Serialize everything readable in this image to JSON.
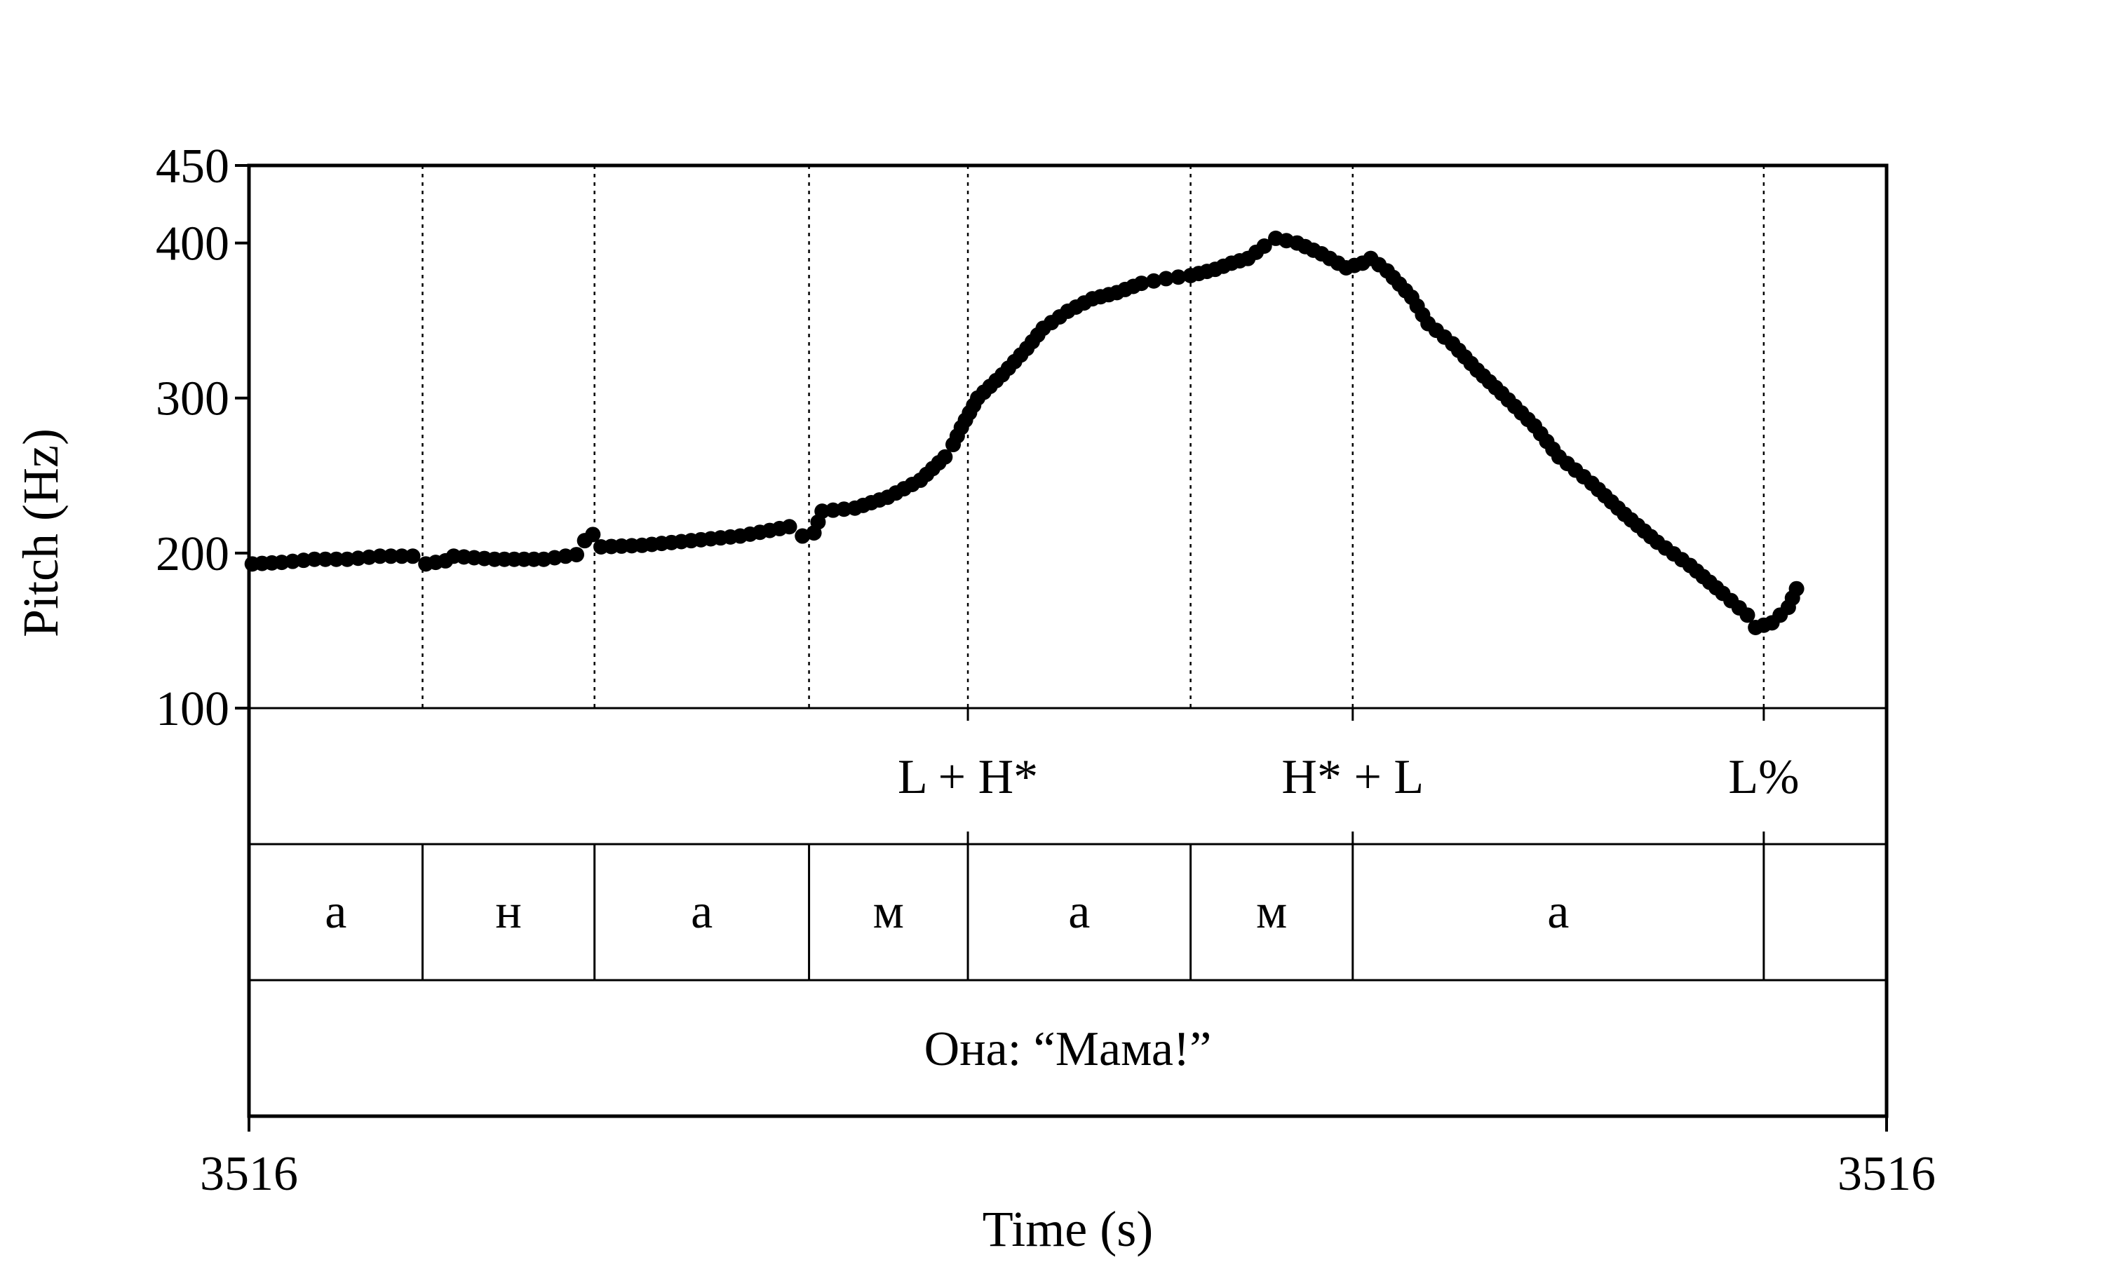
{
  "chart_data": {
    "type": "scatter",
    "title": "",
    "xlabel": "Time (s)",
    "ylabel": "Pitch (Hz)",
    "x_tick_labels": [
      "3516",
      "3516"
    ],
    "x_range_normalized": [
      0,
      1
    ],
    "ylim": [
      100,
      450
    ],
    "yticks": [
      100,
      200,
      300,
      400,
      450
    ],
    "ytick_labels": [
      "100",
      "200",
      "300",
      "400",
      "450"
    ],
    "grid": false,
    "legend": "none",
    "colors": {
      "points": "#000000",
      "lines": "#000000",
      "background": "#ffffff"
    },
    "boundaries": [
      0.106,
      0.211,
      0.342,
      0.439,
      0.575,
      0.674,
      0.925
    ],
    "tone_tier": [
      {
        "label": "L + H*",
        "t": 0.439
      },
      {
        "label": "H* + L",
        "t": 0.674
      },
      {
        "label": "L%",
        "t": 0.925
      }
    ],
    "segment_tier": [
      {
        "label": "а",
        "start": 0.0,
        "end": 0.106
      },
      {
        "label": "н",
        "start": 0.106,
        "end": 0.211
      },
      {
        "label": "а",
        "start": 0.211,
        "end": 0.342
      },
      {
        "label": "м",
        "start": 0.342,
        "end": 0.439
      },
      {
        "label": "а",
        "start": 0.439,
        "end": 0.575
      },
      {
        "label": "м",
        "start": 0.575,
        "end": 0.674
      },
      {
        "label": "а",
        "start": 0.674,
        "end": 0.925
      },
      {
        "label": "",
        "start": 0.925,
        "end": 1.0
      }
    ],
    "sentence_tier": "Она: “Мама!”",
    "pitch_contour": [
      [
        0.002,
        193
      ],
      [
        0.02,
        194
      ],
      [
        0.04,
        196
      ],
      [
        0.06,
        196
      ],
      [
        0.08,
        198
      ],
      [
        0.1,
        198
      ],
      [
        0.108,
        193
      ],
      [
        0.12,
        195
      ],
      [
        0.125,
        198
      ],
      [
        0.15,
        196
      ],
      [
        0.18,
        196
      ],
      [
        0.2,
        199
      ],
      [
        0.205,
        208
      ],
      [
        0.21,
        212
      ],
      [
        0.215,
        204
      ],
      [
        0.24,
        205
      ],
      [
        0.27,
        208
      ],
      [
        0.3,
        211
      ],
      [
        0.33,
        217
      ],
      [
        0.338,
        211
      ],
      [
        0.345,
        213
      ],
      [
        0.35,
        227
      ],
      [
        0.37,
        229
      ],
      [
        0.39,
        236
      ],
      [
        0.41,
        247
      ],
      [
        0.425,
        262
      ],
      [
        0.43,
        270
      ],
      [
        0.435,
        281
      ],
      [
        0.445,
        300
      ],
      [
        0.46,
        315
      ],
      [
        0.475,
        332
      ],
      [
        0.485,
        345
      ],
      [
        0.5,
        356
      ],
      [
        0.515,
        364
      ],
      [
        0.53,
        368
      ],
      [
        0.545,
        374
      ],
      [
        0.56,
        377
      ],
      [
        0.575,
        379
      ],
      [
        0.59,
        383
      ],
      [
        0.6,
        387
      ],
      [
        0.61,
        390
      ],
      [
        0.62,
        398
      ],
      [
        0.627,
        403
      ],
      [
        0.64,
        400
      ],
      [
        0.655,
        393
      ],
      [
        0.67,
        384
      ],
      [
        0.68,
        387
      ],
      [
        0.685,
        390
      ],
      [
        0.695,
        382
      ],
      [
        0.71,
        365
      ],
      [
        0.72,
        348
      ],
      [
        0.735,
        335
      ],
      [
        0.75,
        318
      ],
      [
        0.765,
        303
      ],
      [
        0.785,
        282
      ],
      [
        0.8,
        262
      ],
      [
        0.82,
        245
      ],
      [
        0.84,
        225
      ],
      [
        0.86,
        207
      ],
      [
        0.88,
        192
      ],
      [
        0.9,
        174
      ],
      [
        0.915,
        160
      ],
      [
        0.92,
        152
      ],
      [
        0.93,
        155
      ],
      [
        0.94,
        165
      ],
      [
        0.945,
        177
      ]
    ]
  }
}
